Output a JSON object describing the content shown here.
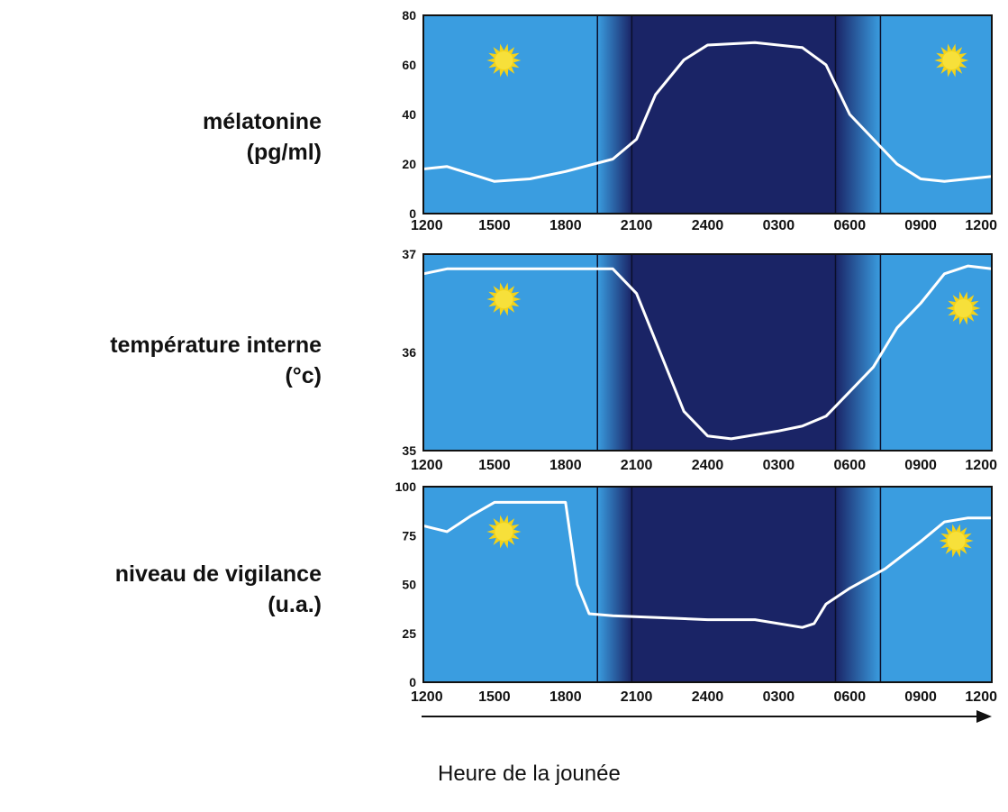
{
  "panels": [
    {
      "label_line1": "mélatonine",
      "label_line2": "(pg/ml)"
    },
    {
      "label_line1": "température interne",
      "label_line2": "(°c)"
    },
    {
      "label_line1": "niveau de vigilance",
      "label_line2": "(u.a.)"
    }
  ],
  "caption": "Heure de la jounée",
  "colors": {
    "day": "#3a9de0",
    "night": "#1a2466",
    "curve": "#ffffff",
    "sun": "#f2d21a",
    "moon": "#f0c92e"
  },
  "chart_data": [
    {
      "type": "line",
      "x_ticks": [
        "1200",
        "1500",
        "1800",
        "2100",
        "2400",
        "0300",
        "0600",
        "0900",
        "1200"
      ],
      "y_ticks": [
        "0",
        "20",
        "40",
        "60",
        "80"
      ],
      "ylim": [
        0,
        80
      ],
      "xlim": [
        0,
        24
      ],
      "x": [
        0,
        1,
        3,
        4.5,
        6,
        8,
        9,
        9.8,
        11,
        12,
        14,
        16,
        17,
        18,
        20,
        21,
        22,
        24
      ],
      "y": [
        18,
        19,
        13,
        14,
        17,
        22,
        30,
        48,
        62,
        68,
        69,
        67,
        60,
        40,
        20,
        14,
        13,
        15
      ]
    },
    {
      "type": "line",
      "x_ticks": [
        "1200",
        "1500",
        "1800",
        "2100",
        "2400",
        "0300",
        "0600",
        "0900",
        "1200"
      ],
      "y_ticks": [
        "35",
        "36",
        "37"
      ],
      "ylim": [
        35,
        37
      ],
      "xlim": [
        0,
        24
      ],
      "x": [
        0,
        1,
        3,
        6,
        8,
        9,
        10,
        11,
        12,
        13,
        15,
        16,
        17,
        18,
        19,
        20,
        21,
        22,
        23,
        24
      ],
      "y": [
        36.8,
        36.85,
        36.85,
        36.85,
        36.85,
        36.6,
        36.0,
        35.4,
        35.15,
        35.12,
        35.2,
        35.25,
        35.35,
        35.6,
        35.85,
        36.25,
        36.5,
        36.8,
        36.88,
        36.85
      ]
    },
    {
      "type": "line",
      "x_ticks": [
        "1200",
        "1500",
        "1800",
        "2100",
        "2400",
        "0300",
        "0600",
        "0900",
        "1200"
      ],
      "y_ticks": [
        "0",
        "25",
        "50",
        "75",
        "100"
      ],
      "ylim": [
        0,
        100
      ],
      "xlim": [
        0,
        24
      ],
      "x": [
        0,
        1,
        2,
        3,
        6,
        6.5,
        7,
        8,
        10,
        12,
        14,
        16,
        16.5,
        17,
        18,
        19.5,
        21,
        22,
        23,
        24
      ],
      "y": [
        80,
        77,
        85,
        92,
        92,
        50,
        35,
        34,
        33,
        32,
        32,
        28,
        30,
        40,
        48,
        58,
        72,
        82,
        84,
        84
      ]
    }
  ]
}
